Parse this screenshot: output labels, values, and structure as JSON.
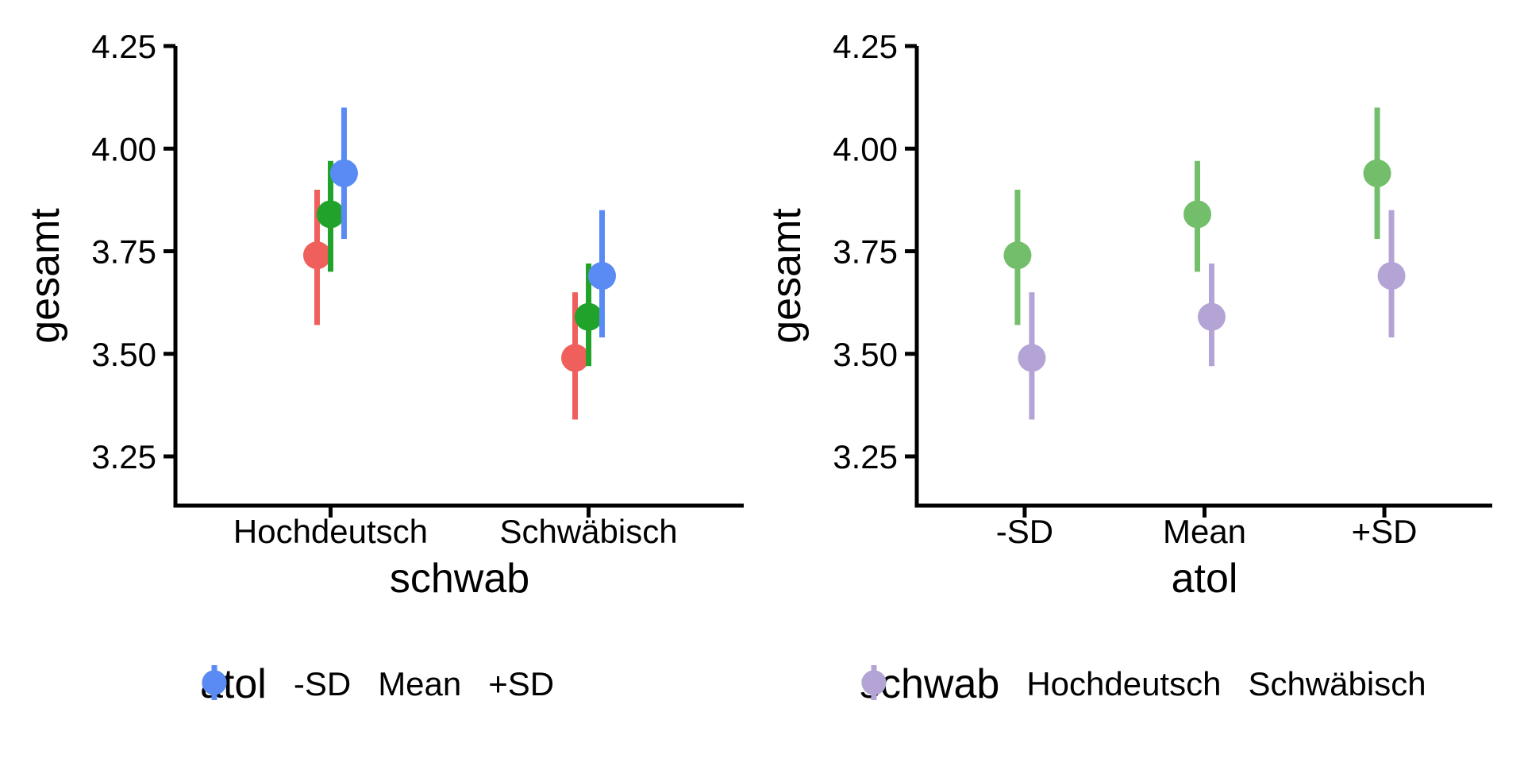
{
  "figure_background": "#ffffff",
  "axis_color": "#000000",
  "chart_data": [
    {
      "type": "pointrange",
      "title": "",
      "xlabel": "schwab",
      "ylabel": "gesamt",
      "categories": [
        "Hochdeutsch",
        "Schwäbisch"
      ],
      "yticks": [
        "4.25",
        "4.00",
        "3.75",
        "3.50",
        "3.25"
      ],
      "ylim": [
        3.13,
        4.25
      ],
      "grid": false,
      "legend": {
        "title": "atol",
        "position": "bottom"
      },
      "series": [
        {
          "name": "-SD",
          "color": "#EF5F5C",
          "means": [
            3.74,
            3.49
          ],
          "lower": [
            3.57,
            3.34
          ],
          "upper": [
            3.9,
            3.65
          ]
        },
        {
          "name": "Mean",
          "color": "#21A32B",
          "means": [
            3.84,
            3.59
          ],
          "lower": [
            3.7,
            3.47
          ],
          "upper": [
            3.97,
            3.72
          ]
        },
        {
          "name": "+SD",
          "color": "#5A8BF4",
          "means": [
            3.94,
            3.69
          ],
          "lower": [
            3.78,
            3.54
          ],
          "upper": [
            4.1,
            3.85
          ]
        }
      ]
    },
    {
      "type": "pointrange",
      "title": "",
      "xlabel": "atol",
      "ylabel": "gesamt",
      "categories": [
        "-SD",
        "Mean",
        "+SD"
      ],
      "yticks": [
        "4.25",
        "4.00",
        "3.75",
        "3.50",
        "3.25"
      ],
      "ylim": [
        3.13,
        4.25
      ],
      "grid": false,
      "legend": {
        "title": "schwab",
        "position": "bottom"
      },
      "series": [
        {
          "name": "Hochdeutsch",
          "color": "#73BE6B",
          "means": [
            3.74,
            3.84,
            3.94
          ],
          "lower": [
            3.57,
            3.7,
            3.78
          ],
          "upper": [
            3.9,
            3.97,
            4.1
          ]
        },
        {
          "name": "Schwäbisch",
          "color": "#B4A4D5",
          "means": [
            3.49,
            3.59,
            3.69
          ],
          "lower": [
            3.34,
            3.47,
            3.54
          ],
          "upper": [
            3.65,
            3.72,
            3.85
          ]
        }
      ]
    }
  ]
}
